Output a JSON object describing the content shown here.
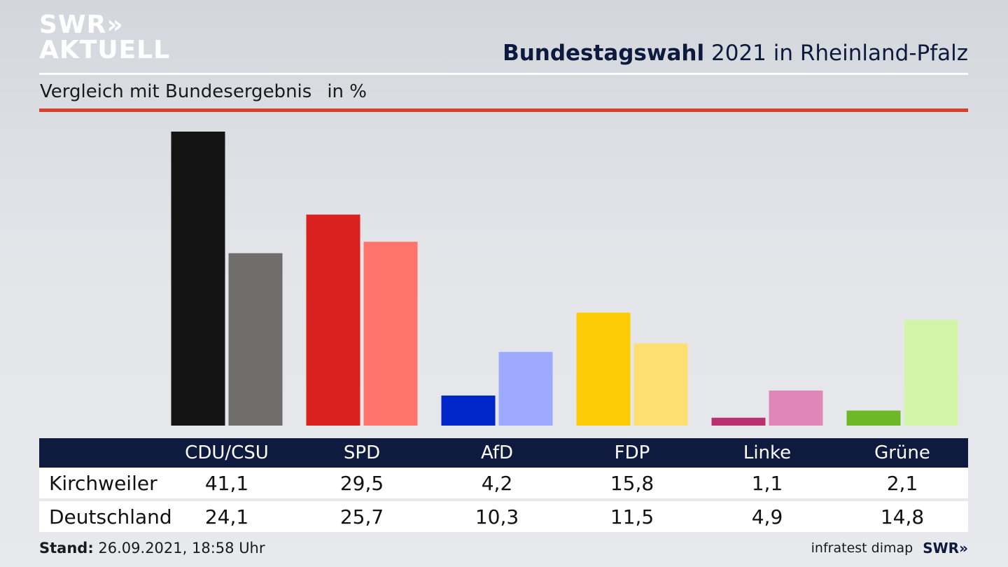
{
  "brand": {
    "line1": "SWR",
    "line2": "AKTUELL",
    "chevrons": "»"
  },
  "header": {
    "title_bold": "Bundestagswahl",
    "title_rest": "2021 in Rheinland-Pfalz"
  },
  "subtitle": {
    "text": "Vergleich mit Bundesergebnis",
    "unit": "in %"
  },
  "footer": {
    "stand_label": "Stand:",
    "stand_value": "26.09.2021, 18:58 Uhr",
    "source": "infratest dimap",
    "source_logo": "SWR",
    "source_chevrons": "»"
  },
  "chart_data": {
    "type": "bar",
    "categories": [
      "CDU/CSU",
      "SPD",
      "AfD",
      "FDP",
      "Linke",
      "Grüne"
    ],
    "series": [
      {
        "name": "Kirchweiler",
        "values": [
          41.1,
          29.5,
          4.2,
          15.8,
          1.1,
          2.1
        ],
        "colors": [
          "#141414",
          "#d92120",
          "#0025c9",
          "#fdcc05",
          "#b8306e",
          "#6db826"
        ]
      },
      {
        "name": "Deutschland",
        "values": [
          24.1,
          25.7,
          10.3,
          11.5,
          4.9,
          14.8
        ],
        "colors": [
          "#706e6c",
          "#ff756e",
          "#9eaaff",
          "#fddf72",
          "#df88b8",
          "#d2f6a8"
        ]
      }
    ],
    "display_values": {
      "Kirchweiler": [
        "41,1",
        "29,5",
        "4,2",
        "15,8",
        "1,1",
        "2,1"
      ],
      "Deutschland": [
        "24,1",
        "25,7",
        "10,3",
        "11,5",
        "4,9",
        "14,8"
      ]
    },
    "ylim": [
      0,
      42
    ],
    "grid": false
  }
}
